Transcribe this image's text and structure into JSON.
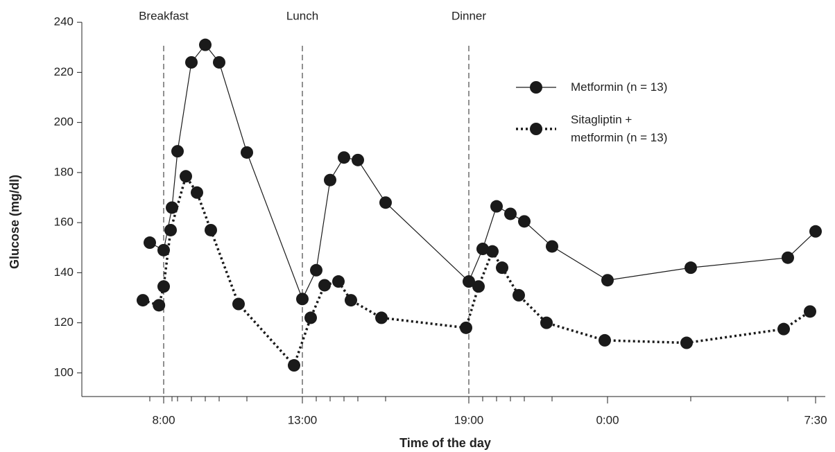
{
  "chart_data": {
    "type": "line",
    "xlabel": "Time of the day",
    "ylabel": "Glucose (mg/dl)",
    "xlim": [
      5,
      32
    ],
    "ylim": [
      90,
      240
    ],
    "xticks": [
      {
        "value": 8,
        "label": "8:00"
      },
      {
        "value": 13,
        "label": "13:00"
      },
      {
        "value": 19,
        "label": "19:00"
      },
      {
        "value": 24,
        "label": "0:00"
      },
      {
        "value": 31.5,
        "label": "7:30"
      }
    ],
    "minor_xticks": [
      7.5,
      8.3,
      8.5,
      9,
      9.5,
      10,
      11,
      13.5,
      14,
      14.5,
      15,
      16,
      19.5,
      20,
      20.5,
      21,
      22,
      27,
      30.5
    ],
    "yticks": [
      100,
      120,
      140,
      160,
      180,
      200,
      220,
      240
    ],
    "annotations": [
      {
        "text": "Breakfast",
        "x": 8
      },
      {
        "text": "Lunch",
        "x": 13
      },
      {
        "text": "Dinner",
        "x": 19
      }
    ],
    "legend": "upper right",
    "series": [
      {
        "name": "Metformin (n = 13)",
        "color": "#1a1a1a",
        "style": "solid",
        "x": [
          7.5,
          8,
          8.3,
          8.5,
          9,
          9.5,
          10,
          11,
          13,
          13.5,
          14,
          14.5,
          15,
          16,
          19,
          19.5,
          20,
          20.5,
          21,
          22,
          24,
          27,
          30.5,
          31.5
        ],
        "values": [
          152,
          149,
          166,
          188.5,
          224,
          231,
          224,
          188,
          129.5,
          141,
          177,
          186,
          185,
          168,
          136.5,
          149.5,
          166.5,
          163.5,
          160.5,
          150.5,
          137,
          142,
          146,
          156.5
        ]
      },
      {
        "name": "Sitagliptin +\nmetformin (n = 13)",
        "color": "#1a1a1a",
        "style": "dotted",
        "x": [
          7.25,
          7.83,
          8,
          8.25,
          8.8,
          9.2,
          9.7,
          10.7,
          12.7,
          13.3,
          13.8,
          14.3,
          14.75,
          15.85,
          18.9,
          19.35,
          19.85,
          20.2,
          20.8,
          21.8,
          23.9,
          26.85,
          30.35,
          31.3
        ],
        "values": [
          129,
          127,
          134.5,
          157,
          178.5,
          172,
          157,
          127.5,
          103,
          122,
          135,
          136.5,
          129,
          122,
          118,
          134.5,
          148.5,
          142,
          131,
          120,
          113,
          112,
          117.5,
          124.5
        ]
      }
    ]
  }
}
